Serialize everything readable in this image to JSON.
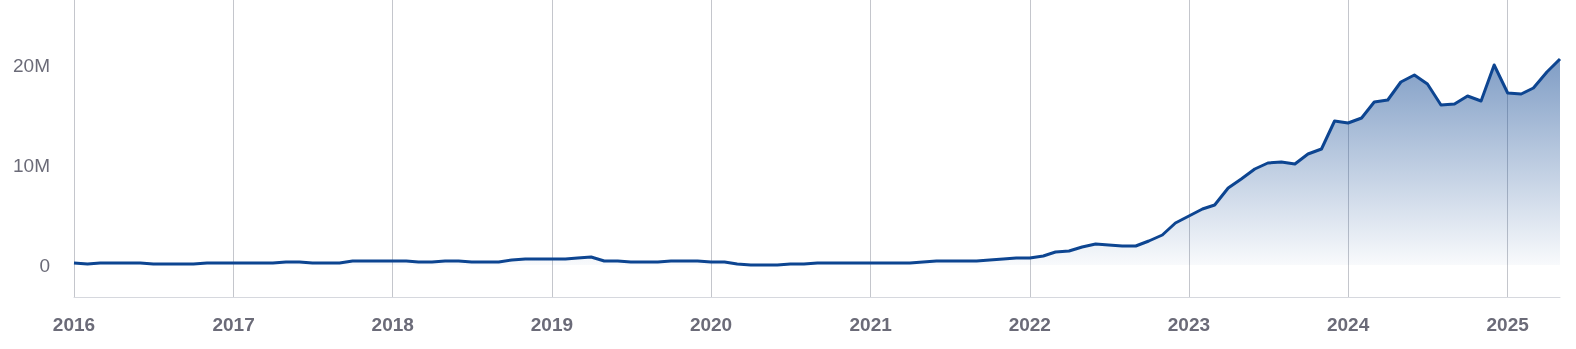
{
  "chart_data": {
    "type": "area",
    "x": [
      "2016-01",
      "2016-02",
      "2016-03",
      "2016-04",
      "2016-05",
      "2016-06",
      "2016-07",
      "2016-08",
      "2016-09",
      "2016-10",
      "2016-11",
      "2016-12",
      "2017-01",
      "2017-02",
      "2017-03",
      "2017-04",
      "2017-05",
      "2017-06",
      "2017-07",
      "2017-08",
      "2017-09",
      "2017-10",
      "2017-11",
      "2017-12",
      "2018-01",
      "2018-02",
      "2018-03",
      "2018-04",
      "2018-05",
      "2018-06",
      "2018-07",
      "2018-08",
      "2018-09",
      "2018-10",
      "2018-11",
      "2018-12",
      "2019-01",
      "2019-02",
      "2019-03",
      "2019-04",
      "2019-05",
      "2019-06",
      "2019-07",
      "2019-08",
      "2019-09",
      "2019-10",
      "2019-11",
      "2019-12",
      "2020-01",
      "2020-02",
      "2020-03",
      "2020-04",
      "2020-05",
      "2020-06",
      "2020-07",
      "2020-08",
      "2020-09",
      "2020-10",
      "2020-11",
      "2020-12",
      "2021-01",
      "2021-02",
      "2021-03",
      "2021-04",
      "2021-05",
      "2021-06",
      "2021-07",
      "2021-08",
      "2021-09",
      "2021-10",
      "2021-11",
      "2021-12",
      "2022-01",
      "2022-02",
      "2022-03",
      "2022-04",
      "2022-05",
      "2022-06",
      "2022-07",
      "2022-08",
      "2022-09",
      "2022-10",
      "2022-11",
      "2022-12",
      "2023-01",
      "2023-02",
      "2023-03",
      "2023-04",
      "2023-05",
      "2023-06",
      "2023-07",
      "2023-08",
      "2023-09",
      "2023-10",
      "2023-11",
      "2023-12",
      "2024-01",
      "2024-02",
      "2024-03",
      "2024-04",
      "2024-05",
      "2024-06",
      "2024-07",
      "2024-08",
      "2024-09",
      "2024-10",
      "2024-11",
      "2024-12",
      "2025-01",
      "2025-02",
      "2025-03",
      "2025-04",
      "2025-05"
    ],
    "series": [
      {
        "color": "#0d4591",
        "values": [
          0.2,
          0.1,
          0.2,
          0.2,
          0.2,
          0.2,
          0.1,
          0.1,
          0.1,
          0.1,
          0.2,
          0.2,
          0.2,
          0.2,
          0.2,
          0.2,
          0.3,
          0.3,
          0.2,
          0.2,
          0.2,
          0.4,
          0.4,
          0.4,
          0.4,
          0.4,
          0.3,
          0.3,
          0.4,
          0.4,
          0.3,
          0.3,
          0.3,
          0.5,
          0.6,
          0.6,
          0.6,
          0.6,
          0.7,
          0.8,
          0.4,
          0.4,
          0.3,
          0.3,
          0.3,
          0.4,
          0.4,
          0.4,
          0.3,
          0.3,
          0.1,
          0.0,
          0.0,
          0.0,
          0.1,
          0.1,
          0.2,
          0.2,
          0.2,
          0.2,
          0.2,
          0.2,
          0.2,
          0.2,
          0.3,
          0.4,
          0.4,
          0.4,
          0.4,
          0.5,
          0.6,
          0.7,
          0.7,
          0.9,
          1.3,
          1.4,
          1.8,
          2.1,
          2.0,
          1.9,
          1.9,
          2.4,
          3.0,
          4.2,
          4.9,
          5.6,
          6.0,
          7.7,
          8.6,
          9.6,
          10.2,
          10.3,
          10.1,
          11.1,
          11.6,
          14.4,
          14.2,
          14.7,
          16.3,
          16.5,
          18.3,
          19.0,
          18.1,
          16.0,
          16.1,
          16.9,
          16.4,
          20.0,
          17.2,
          17.1,
          17.7,
          19.3,
          20.6
        ]
      }
    ],
    "xlim": [
      "2016-01",
      "2025-05"
    ],
    "xticks": [
      "2016",
      "2017",
      "2018",
      "2019",
      "2020",
      "2021",
      "2022",
      "2023",
      "2024",
      "2025"
    ],
    "ylim": [
      -3.2,
      26.5
    ],
    "yticks": [
      {
        "value": 0,
        "label": "0"
      },
      {
        "value": 10,
        "label": "10M"
      },
      {
        "value": 20,
        "label": "20M"
      }
    ],
    "grid": "x"
  }
}
